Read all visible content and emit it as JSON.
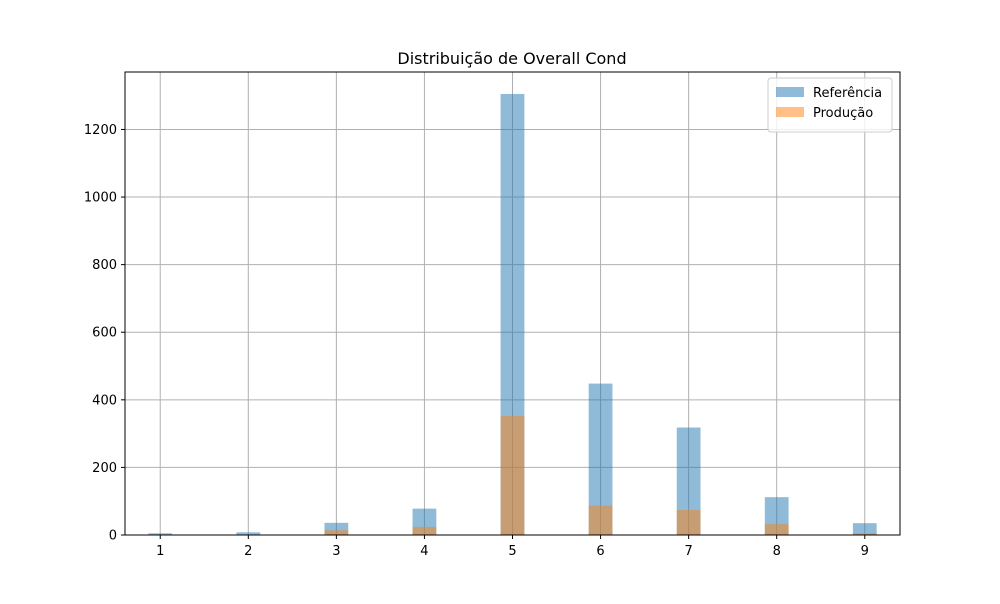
{
  "chart_data": {
    "type": "bar",
    "title": "Distribuição de Overall Cond",
    "xlabel": "",
    "ylabel": "",
    "x": [
      1,
      2,
      3,
      4,
      5,
      6,
      7,
      8,
      9
    ],
    "x_ticks": [
      "1",
      "2",
      "3",
      "4",
      "5",
      "6",
      "7",
      "8",
      "9"
    ],
    "y_ticks": [
      "0",
      "200",
      "400",
      "600",
      "800",
      "1000",
      "1200"
    ],
    "xlim": [
      0.6,
      9.4
    ],
    "ylim": [
      0,
      1370
    ],
    "grid": true,
    "legend_position": "top-right",
    "series": [
      {
        "name": "Referência",
        "color": "#1f77b4",
        "opacity": 0.5,
        "values": [
          5,
          8,
          36,
          78,
          1305,
          448,
          318,
          112,
          35
        ]
      },
      {
        "name": "Produção",
        "color": "#ff7f0e",
        "opacity": 0.5,
        "values": [
          0,
          0,
          14,
          24,
          352,
          87,
          74,
          32,
          5
        ]
      }
    ]
  }
}
